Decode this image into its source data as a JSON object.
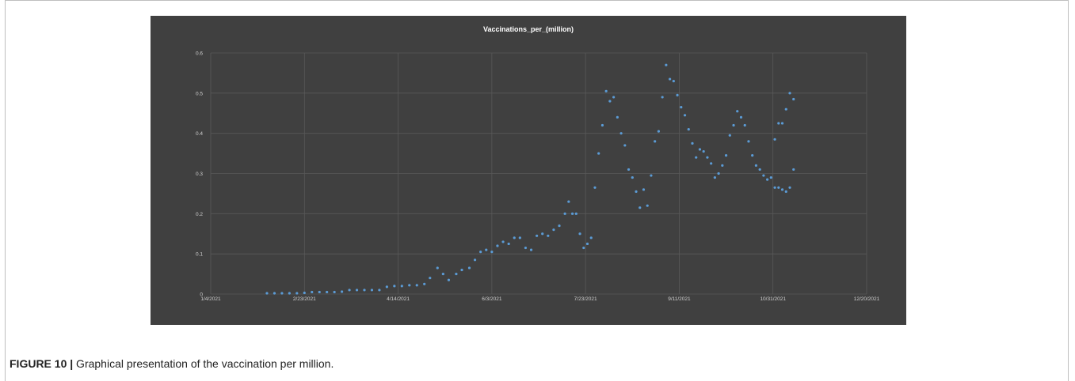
{
  "figure": {
    "label": "FIGURE 10 |",
    "caption": " Graphical presentation of the vaccination per million."
  },
  "colors": {
    "background": "#404040",
    "grid": "#595959",
    "axis_text": "#d0d0d0",
    "title": "#ffffff",
    "points": "#5b9bd5"
  },
  "chart_data": {
    "type": "scatter",
    "title": "Vaccinations_per_(million)",
    "xlabel": "",
    "ylabel": "",
    "grid": true,
    "legend": "none",
    "xlim": [
      "2021-01-04",
      "2021-12-20"
    ],
    "ylim": [
      0,
      0.6
    ],
    "x_ticks": [
      "2021-01-04",
      "2021-02-23",
      "2021-04-14",
      "2021-06-03",
      "2021-07-23",
      "2021-09-11",
      "2021-10-31",
      "2021-12-20"
    ],
    "x_tick_labels": [
      "1/4/2021",
      "2/23/2021",
      "4/14/2021",
      "6/3/2021",
      "7/23/2021",
      "9/11/2021",
      "10/31/2021",
      "12/20/2021"
    ],
    "y_ticks": [
      0,
      0.1,
      0.2,
      0.3,
      0.4,
      0.5,
      0.6
    ],
    "y_tick_labels": [
      "0",
      "0.1",
      "0.2",
      "0.3",
      "0.4",
      "0.5",
      "0.6"
    ],
    "series": [
      {
        "x": [
          "2021-02-03",
          "2021-02-07",
          "2021-02-11",
          "2021-02-15",
          "2021-02-19",
          "2021-02-23",
          "2021-02-27",
          "2021-03-03",
          "2021-03-07",
          "2021-03-11",
          "2021-03-15",
          "2021-03-19",
          "2021-03-23",
          "2021-03-27",
          "2021-03-31",
          "2021-04-04",
          "2021-04-08",
          "2021-04-12",
          "2021-04-16",
          "2021-04-20",
          "2021-04-24",
          "2021-04-28",
          "2021-05-01",
          "2021-05-05",
          "2021-05-08",
          "2021-05-11",
          "2021-05-15",
          "2021-05-18",
          "2021-05-22",
          "2021-05-25",
          "2021-05-28",
          "2021-05-31",
          "2021-06-03",
          "2021-06-06",
          "2021-06-09",
          "2021-06-12",
          "2021-06-15",
          "2021-06-18",
          "2021-06-21",
          "2021-06-24",
          "2021-06-27",
          "2021-06-30",
          "2021-07-03",
          "2021-07-06",
          "2021-07-09",
          "2021-07-12",
          "2021-07-14",
          "2021-07-16",
          "2021-07-18",
          "2021-07-20",
          "2021-07-22",
          "2021-07-24",
          "2021-07-26",
          "2021-07-28",
          "2021-07-30",
          "2021-08-01",
          "2021-08-03",
          "2021-08-05",
          "2021-08-07",
          "2021-08-09",
          "2021-08-11",
          "2021-08-13",
          "2021-08-15",
          "2021-08-17",
          "2021-08-19",
          "2021-08-21",
          "2021-08-23",
          "2021-08-25",
          "2021-08-27",
          "2021-08-29",
          "2021-08-31",
          "2021-09-02",
          "2021-09-04",
          "2021-09-06",
          "2021-09-08",
          "2021-09-10",
          "2021-09-12",
          "2021-09-14",
          "2021-09-16",
          "2021-09-18",
          "2021-09-20",
          "2021-09-22",
          "2021-09-24",
          "2021-09-26",
          "2021-09-28",
          "2021-09-30",
          "2021-10-02",
          "2021-10-04",
          "2021-10-06",
          "2021-10-08",
          "2021-10-10",
          "2021-10-12",
          "2021-10-14",
          "2021-10-16",
          "2021-10-18",
          "2021-10-20",
          "2021-10-22",
          "2021-10-24",
          "2021-10-26",
          "2021-10-28",
          "2021-10-30",
          "2021-11-01",
          "2021-11-03",
          "2021-11-05",
          "2021-11-07",
          "2021-11-09",
          "2021-11-11"
        ],
        "y": [
          0.002,
          0.002,
          0.002,
          0.002,
          0.002,
          0.003,
          0.005,
          0.005,
          0.005,
          0.005,
          0.006,
          0.01,
          0.01,
          0.01,
          0.01,
          0.01,
          0.018,
          0.02,
          0.02,
          0.022,
          0.022,
          0.025,
          0.04,
          0.065,
          0.05,
          0.035,
          0.05,
          0.06,
          0.065,
          0.085,
          0.105,
          0.11,
          0.105,
          0.12,
          0.13,
          0.125,
          0.14,
          0.14,
          0.115,
          0.11,
          0.145,
          0.15,
          0.145,
          0.16,
          0.17,
          0.2,
          0.23,
          0.2,
          0.2,
          0.15,
          0.115,
          0.125,
          0.14,
          0.265,
          0.35,
          0.42,
          0.505,
          0.48,
          0.49,
          0.44,
          0.4,
          0.37,
          0.31,
          0.29,
          0.255,
          0.215,
          0.26,
          0.22,
          0.295,
          0.38,
          0.405,
          0.49,
          0.57,
          0.535,
          0.53,
          0.495,
          0.465,
          0.445,
          0.41,
          0.375,
          0.34,
          0.36,
          0.355,
          0.34,
          0.325,
          0.29,
          0.3,
          0.32,
          0.345,
          0.395,
          0.42,
          0.455,
          0.44,
          0.42,
          0.38,
          0.345,
          0.32,
          0.31,
          0.295,
          0.285,
          0.29,
          0.265,
          0.265,
          0.26,
          0.255,
          0.265,
          0.31
        ]
      },
      {
        "x": [
          "2021-11-01",
          "2021-11-03",
          "2021-11-05",
          "2021-11-07",
          "2021-11-09",
          "2021-11-11"
        ],
        "y": [
          0.385,
          0.425,
          0.425,
          0.46,
          0.5,
          0.485
        ]
      }
    ]
  }
}
